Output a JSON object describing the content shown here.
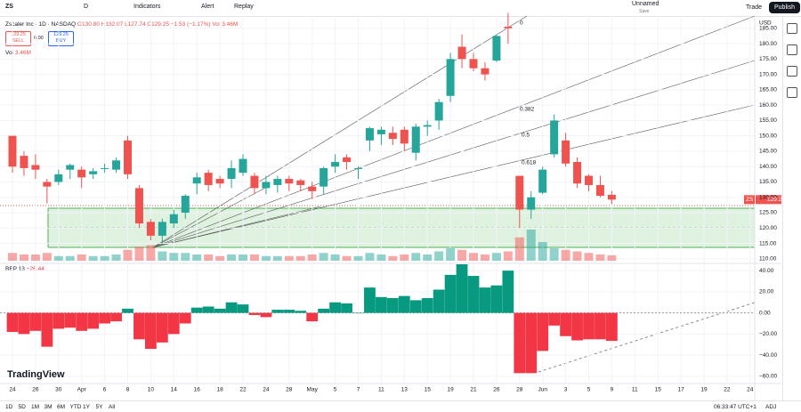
{
  "toolbar": {
    "symbol": "ZS",
    "interval": "D",
    "indicators": "Indicators",
    "alert": "Alert",
    "replay": "Replay",
    "layout_name": "Unnamed",
    "save": "Save",
    "trade": "Trade",
    "publish": "Publish"
  },
  "legend": {
    "name": "Zscaler Inc · 1D · NASDAQ",
    "open": "O130.80",
    "high": "H132.07",
    "low": "L127.74",
    "close": "C129.25",
    "change": "−1.53 (−1.17%)",
    "volume": "Vol 3.46M",
    "sell_price": "129.25",
    "sell": "SELL",
    "spread": "0.00",
    "buy_price": "129.25",
    "buy": "BUY",
    "vol_label": "Vol",
    "vol_value": "3.46M"
  },
  "bottom_bar": {
    "ranges": [
      "1D",
      "5D",
      "1M",
      "3M",
      "6M",
      "YTD",
      "1Y",
      "5Y",
      "All"
    ],
    "clock": "06:33:47 UTC+1",
    "adj": "ADJ"
  },
  "logo": "TradingView",
  "chart_data": [
    {
      "type": "candlestick",
      "currency": "USD",
      "symbol_tag": "ZS",
      "price_tag": "129.25",
      "up_color": "#26a69a",
      "down_color": "#ef5350",
      "annotations": [
        "0",
        "0.382",
        "0.5",
        "0.618"
      ],
      "open": [
        150,
        143.5,
        140.5,
        135,
        135,
        139,
        139,
        137.5,
        139.5,
        139,
        148.5,
        133,
        122,
        117.5,
        121.5,
        125,
        134.5,
        138,
        136,
        136,
        138,
        137,
        133,
        134,
        136,
        135.5,
        133.5,
        133.5,
        140,
        143,
        139.5,
        148.5,
        150.5,
        151,
        152,
        144.5,
        153,
        155,
        163,
        179,
        175,
        172,
        174.5,
        185.5,
        137,
        126,
        131.5,
        144,
        148.5,
        141.5,
        137,
        134,
        130.8
      ],
      "high": [
        150,
        145,
        144,
        136,
        139,
        141,
        140,
        139.5,
        141,
        143,
        150,
        134,
        123,
        123,
        126,
        131,
        138,
        139,
        137,
        142,
        144,
        138,
        137,
        137,
        137,
        136,
        135,
        140,
        144,
        144,
        140,
        153,
        153,
        153,
        153,
        154,
        155,
        162,
        177,
        183,
        177,
        174,
        183,
        190,
        137,
        132,
        140,
        157,
        151,
        143,
        137.5,
        137,
        132.07
      ],
      "low": [
        138,
        137,
        136,
        128,
        134,
        136,
        133,
        136,
        138,
        138,
        136,
        120,
        116,
        115,
        120,
        123,
        131,
        132,
        133,
        133,
        137,
        131,
        131,
        131.5,
        132,
        132,
        129.5,
        131,
        138,
        139,
        136,
        145,
        147,
        147,
        145,
        142,
        150,
        152,
        161,
        172,
        171,
        168,
        174,
        180,
        120,
        123,
        131,
        143,
        140,
        133,
        132,
        130,
        127.74
      ],
      "close": [
        140,
        139.5,
        139,
        133.5,
        137.5,
        140.5,
        136.5,
        138.5,
        139.5,
        142,
        137.5,
        121.5,
        117.5,
        122,
        124.5,
        130.5,
        136.5,
        134,
        134.5,
        139.5,
        142.5,
        133,
        135,
        136,
        134.5,
        134,
        132,
        139.5,
        141.5,
        141.5,
        139.5,
        152.5,
        152,
        149,
        147.5,
        153,
        153.5,
        161,
        175,
        175,
        172,
        170,
        182.5,
        185,
        126,
        130,
        139,
        155,
        141,
        134.5,
        134,
        130.5,
        129.25
      ],
      "volume": [
        5,
        4,
        4,
        5,
        3,
        3,
        4,
        3,
        3,
        4,
        7,
        9,
        10,
        6,
        5,
        5,
        4,
        4,
        3,
        4,
        4,
        4,
        3,
        3,
        3,
        3,
        4,
        5,
        4,
        3,
        3,
        5,
        4,
        3,
        4,
        5,
        4,
        6,
        8,
        7,
        5,
        4,
        5,
        6,
        15,
        20,
        12,
        8,
        7,
        6,
        5,
        4,
        3.46
      ],
      "ylim": [
        108.5,
        189
      ],
      "yticks": [
        {
          "value": 110,
          "label": "110.00"
        },
        {
          "value": 115,
          "label": "115.00"
        },
        {
          "value": 120,
          "label": "120.00"
        },
        {
          "value": 125,
          "label": "125.00"
        },
        {
          "value": 130,
          "label": "130.00"
        },
        {
          "value": 135,
          "label": "135.00"
        },
        {
          "value": 140,
          "label": "140.00"
        },
        {
          "value": 145,
          "label": "145.00"
        },
        {
          "value": 150,
          "label": "150.00"
        },
        {
          "value": 155,
          "label": "155.00"
        },
        {
          "value": 160,
          "label": "160.00"
        },
        {
          "value": 165,
          "label": "165.00"
        },
        {
          "value": 170,
          "label": "170.00"
        },
        {
          "value": 175,
          "label": "175.00"
        },
        {
          "value": 180,
          "label": "180.00"
        },
        {
          "value": 185,
          "label": "185.00"
        }
      ],
      "xticks": [
        {
          "value": 0,
          "label": "24"
        },
        {
          "value": 2,
          "label": "26"
        },
        {
          "value": 4,
          "label": "30"
        },
        {
          "value": 6,
          "label": "Apr"
        },
        {
          "value": 8,
          "label": "6"
        },
        {
          "value": 10,
          "label": "8"
        },
        {
          "value": 12,
          "label": "10"
        },
        {
          "value": 14,
          "label": "14"
        },
        {
          "value": 16,
          "label": "16"
        },
        {
          "value": 18,
          "label": "18"
        },
        {
          "value": 20,
          "label": "22"
        },
        {
          "value": 22,
          "label": "24"
        },
        {
          "value": 24,
          "label": "28"
        },
        {
          "value": 26,
          "label": "May"
        },
        {
          "value": 28,
          "label": "5"
        },
        {
          "value": 30,
          "label": "7"
        },
        {
          "value": 32,
          "label": "11"
        },
        {
          "value": 34,
          "label": "13"
        },
        {
          "value": 36,
          "label": "15"
        },
        {
          "value": 38,
          "label": "19"
        },
        {
          "value": 40,
          "label": "21"
        },
        {
          "value": 42,
          "label": "26"
        },
        {
          "value": 44,
          "label": "28"
        },
        {
          "value": 46,
          "label": "Jun"
        },
        {
          "value": 48,
          "label": "3"
        },
        {
          "value": 50,
          "label": "5"
        },
        {
          "value": 52,
          "label": "9"
        },
        {
          "value": 54,
          "label": "11"
        },
        {
          "value": 56,
          "label": "15"
        },
        {
          "value": 58,
          "label": "17"
        },
        {
          "value": 60,
          "label": "19"
        },
        {
          "value": 62,
          "label": "22"
        },
        {
          "value": 64,
          "label": "24"
        }
      ],
      "grid": true
    },
    {
      "type": "bar",
      "title": "BBP 13",
      "last_label": "−26.44",
      "up_color": "#089981",
      "down_color": "#f23645",
      "values": [
        -18,
        -20,
        -17,
        -32,
        -15,
        -14,
        -17,
        -15,
        -10,
        -8,
        4,
        -25,
        -34,
        -28,
        -20,
        -10,
        5,
        6,
        4,
        10,
        8,
        -2,
        -4,
        3,
        3,
        2,
        -8,
        4,
        10,
        9,
        0,
        24,
        15,
        14,
        16,
        12,
        14,
        22,
        36,
        46,
        35,
        24,
        26,
        40,
        -57,
        -57,
        -36,
        -12,
        -22,
        -26,
        -25,
        -25,
        -26.44
      ],
      "ylim": [
        -66,
        46
      ],
      "yticks": [
        {
          "value": 40,
          "label": "40.00"
        },
        {
          "value": 20,
          "label": "20.00"
        },
        {
          "value": 0,
          "label": "0.00"
        },
        {
          "value": -20,
          "label": "−20.00"
        },
        {
          "value": -40,
          "label": "−40.00"
        },
        {
          "value": -60,
          "label": "−60.00"
        }
      ],
      "grid": true
    }
  ]
}
